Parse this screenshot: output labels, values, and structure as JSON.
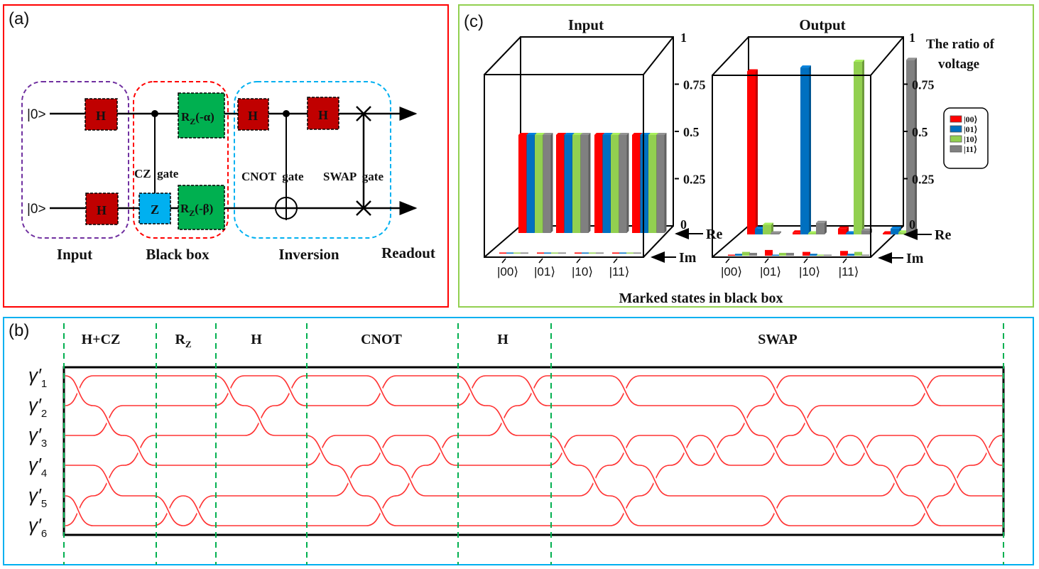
{
  "panel_a": {
    "label": "(a)",
    "inputs": [
      "|0>",
      "|0>"
    ],
    "gates": {
      "h": "H",
      "z": "Z",
      "rz_alpha_main": "R",
      "rz_alpha_sub": "Z",
      "rz_alpha_arg": "(-α)",
      "rz_beta_main": "R",
      "rz_beta_sub": "Z",
      "rz_beta_arg": "(-β)"
    },
    "gate_labels": {
      "cz": "CZ  gate",
      "cnot": "CNOT  gate",
      "swap": "SWAP  gate"
    },
    "sections": [
      "Input",
      "Black box",
      "Inversion",
      "Readout"
    ],
    "colors": {
      "h_gate": "#c00000",
      "z_gate": "#00b0f0",
      "rz_gate": "#00b050",
      "input_box": "#7030a0",
      "black_box": "#ff0000",
      "inversion_box": "#00b0f0",
      "border": "#ff0000"
    }
  },
  "panel_b": {
    "label": "(b)",
    "columns": [
      "H+CZ",
      "R",
      "H",
      "CNOT",
      "H",
      "SWAP"
    ],
    "rz_sub": "Z",
    "strands": [
      "γ′1",
      "γ′2",
      "γ′3",
      "γ′4",
      "γ′5",
      "γ′6"
    ],
    "strand_symbol": "γ′",
    "strand_indices": [
      "1",
      "2",
      "3",
      "4",
      "5",
      "6"
    ],
    "colors": {
      "strand": "#ff3333",
      "divider": "#00b050",
      "border": "#00b0f0"
    }
  },
  "panel_c": {
    "label": "(c)",
    "xlabel": "Marked states in black box",
    "ylabel_line1": "The ratio of",
    "ylabel_line2": "voltage",
    "re_label": "Re",
    "im_label": "Im",
    "border_color": "#92d050"
  },
  "chart_data": [
    {
      "type": "bar",
      "title": "Input",
      "categories": [
        "|00⟩",
        "|01⟩",
        "|10⟩",
        "|11⟩"
      ],
      "yticks": [
        "0",
        "0.25",
        "0.5",
        "0.75",
        "1"
      ],
      "ylim": [
        0,
        1
      ],
      "legend": [
        "|00⟩",
        "|01⟩",
        "|10⟩",
        "|11⟩"
      ],
      "series_colors": [
        "#ff0000",
        "#0070c0",
        "#92d050",
        "#808080"
      ],
      "re": [
        [
          0.5,
          0.5,
          0.5,
          0.5
        ],
        [
          0.5,
          0.5,
          0.5,
          0.5
        ],
        [
          0.5,
          0.5,
          0.5,
          0.5
        ],
        [
          0.5,
          0.5,
          0.5,
          0.5
        ]
      ],
      "im": [
        [
          0,
          0,
          0,
          0
        ],
        [
          0,
          0,
          0,
          0
        ],
        [
          0,
          0,
          0,
          0
        ],
        [
          0,
          0,
          0,
          0
        ]
      ]
    },
    {
      "type": "bar",
      "title": "Output",
      "categories": [
        "|00⟩",
        "|01⟩",
        "|10⟩",
        "|11⟩"
      ],
      "yticks": [
        "0",
        "0.25",
        "0.5",
        "0.75",
        "1"
      ],
      "ylim": [
        0,
        1
      ],
      "legend": [
        "|00⟩",
        "|01⟩",
        "|10⟩",
        "|11⟩"
      ],
      "legend_position": "right",
      "series_colors": [
        "#ff0000",
        "#0070c0",
        "#92d050",
        "#808080"
      ],
      "re": [
        [
          0.85,
          0.03,
          0.05,
          0.0
        ],
        [
          0.01,
          0.87,
          0.005,
          0.06
        ],
        [
          0.03,
          0.005,
          0.9,
          0.02
        ],
        [
          0.003,
          0.03,
          0.01,
          0.91
        ]
      ],
      "im": [
        [
          0.002,
          0.01,
          0.02,
          0.015
        ],
        [
          0.03,
          0.005,
          0.015,
          0.015
        ],
        [
          0.02,
          0.01,
          0.005,
          0.005
        ],
        [
          0.025,
          0.01,
          0.02,
          0.0
        ]
      ]
    }
  ]
}
